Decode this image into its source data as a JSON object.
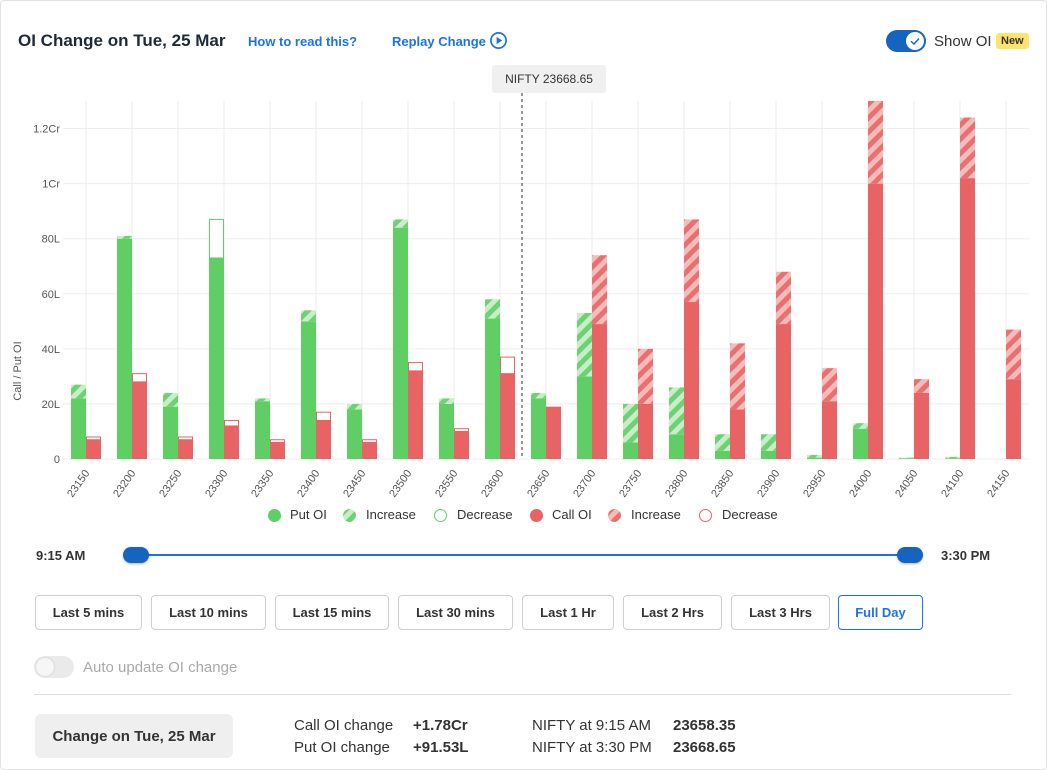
{
  "header": {
    "title": "OI Change on Tue, 25 Mar",
    "how_to_read": "How to read this?",
    "replay": "Replay Change",
    "show_oi": "Show OI",
    "new_badge": "New"
  },
  "tooltip": "NIFTY 23668.65",
  "colors": {
    "put": "#5fcf65",
    "put_light": "#bfeebf",
    "call": "#e86464",
    "call_light": "#f4b5b5",
    "accent": "#1a73e8"
  },
  "chart_data": {
    "type": "bar",
    "ylabel": "Call / Put OI",
    "y_ticks": [
      "0",
      "20L",
      "40L",
      "60L",
      "80L",
      "1Cr",
      "1.2Cr"
    ],
    "y_tick_values": [
      0,
      20,
      40,
      60,
      80,
      100,
      120
    ],
    "ylim": [
      0,
      130
    ],
    "unit": "L",
    "spot_marker_strike": "23650",
    "categories": [
      "23150",
      "23200",
      "23250",
      "23300",
      "23350",
      "23400",
      "23450",
      "23500",
      "23550",
      "23600",
      "23650",
      "23700",
      "23750",
      "23800",
      "23850",
      "23900",
      "23950",
      "24000",
      "24050",
      "24100",
      "24150"
    ],
    "series": [
      {
        "name": "Put OI",
        "base": [
          22,
          80,
          19,
          73,
          21,
          50,
          18,
          84,
          20,
          51,
          22,
          30,
          6,
          9,
          3,
          3,
          0.5,
          11,
          0.3,
          0.3,
          0
        ],
        "increase": [
          5,
          1,
          5,
          0,
          1,
          4,
          2,
          3,
          2,
          7,
          2,
          23,
          14,
          17,
          6,
          6,
          1,
          2,
          0.2,
          0.5,
          0
        ],
        "decrease": [
          0,
          0,
          0,
          14,
          0,
          0,
          0,
          0,
          0,
          0,
          0,
          0,
          0,
          0,
          0,
          0,
          0,
          0,
          0,
          0,
          0
        ]
      },
      {
        "name": "Call OI",
        "base": [
          7,
          28,
          7,
          12,
          6,
          14,
          6,
          32,
          10,
          31,
          19,
          49,
          20,
          57,
          18,
          49,
          21,
          100,
          24,
          102,
          29
        ],
        "increase": [
          0,
          0,
          0,
          0,
          0,
          0,
          0,
          0,
          0,
          0,
          0,
          25,
          20,
          30,
          24,
          19,
          12,
          30,
          5,
          22,
          18
        ],
        "decrease": [
          1,
          3,
          1,
          2,
          1,
          3,
          1,
          3,
          1,
          6,
          0,
          0,
          0,
          0,
          0,
          0,
          0,
          0,
          0,
          0,
          0
        ]
      }
    ],
    "legend": [
      "Put OI",
      "Increase",
      "Decrease",
      "Call OI",
      "Increase",
      "Decrease"
    ],
    "legend_position": "bottom"
  },
  "slider": {
    "start": "9:15 AM",
    "end": "3:30 PM"
  },
  "ranges": [
    "Last 5 mins",
    "Last 10 mins",
    "Last 15 mins",
    "Last 30 mins",
    "Last 1 Hr",
    "Last 2 Hrs",
    "Last 3 Hrs",
    "Full Day"
  ],
  "active_range": "Full Day",
  "auto_update": {
    "label": "Auto update OI change",
    "enabled": false
  },
  "summary": {
    "button": "Change on Tue, 25 Mar",
    "call_label": "Call OI change",
    "call_value": "+1.78Cr",
    "put_label": "Put OI change",
    "put_value": "+91.53L",
    "nifty_open_label": "NIFTY at 9:15 AM",
    "nifty_open_value": "23658.35",
    "nifty_close_label": "NIFTY at 3:30 PM",
    "nifty_close_value": "23668.65"
  }
}
